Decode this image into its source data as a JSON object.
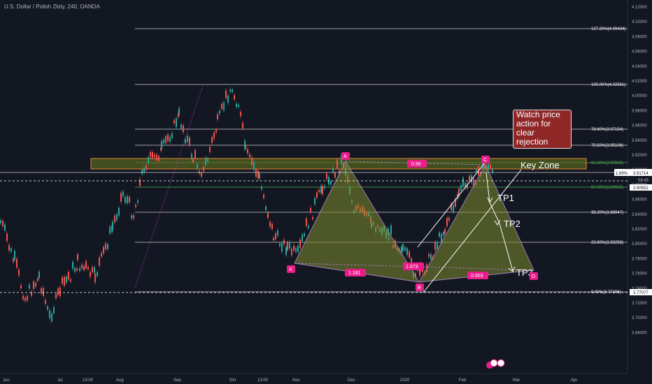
{
  "symbol_title": "U.S. Dollar / Polish Zloty, 240, OANDA",
  "callout_text": "Watch price action for clear rejection",
  "key_zone_label": "Key Zone",
  "targets": [
    "TP1",
    "TP2",
    "TP3"
  ],
  "pattern_points": [
    "X",
    "A",
    "B",
    "C",
    "D"
  ],
  "pattern_ratios": {
    "xb": "1.181",
    "ac": "0.96",
    "b_label": "1.073",
    "cd": "0.903"
  },
  "price_axis": [
    "4.12000",
    "4.10000",
    "4.08000",
    "4.06000",
    "4.04000",
    "4.02000",
    "4.00000",
    "3.98000",
    "3.96000",
    "3.94000",
    "3.92000",
    "3.90000",
    "3.88000",
    "3.86000",
    "3.84000",
    "3.82000",
    "3.80000",
    "3.78000",
    "3.76000",
    "3.74000",
    "3.72000",
    "3.70000",
    "3.68000"
  ],
  "time_axis": [
    "Jun",
    "Jul",
    "13:00",
    "Aug",
    "Sep",
    "Oct",
    "13:00",
    "Nov",
    "Dec",
    "2020",
    "Feb",
    "Mar",
    "Apr"
  ],
  "fib_levels": [
    {
      "label": "127.20%(4.09434)",
      "color": "white"
    },
    {
      "label": "100.00%(4.02561)",
      "color": "white"
    },
    {
      "label": "78.60%(3.97154)",
      "color": "white"
    },
    {
      "label": "70.50%(3.95108)",
      "color": "white"
    },
    {
      "label": "61.80%(3.92910)",
      "color": "green"
    },
    {
      "label": "50.00%(3.89928)",
      "color": "green"
    },
    {
      "label": "38.20%(3.86947)",
      "color": "white"
    },
    {
      "label": "23.60%(3.83258)",
      "color": "white"
    },
    {
      "label": "0.00%(3.77296)",
      "color": "white"
    }
  ],
  "price_tags": {
    "current": "3.91714",
    "current_prefix": "1.69%",
    "countdown": "58:45",
    "level_a": "3.90552",
    "level_b": "3.77077"
  },
  "colors": {
    "background": "#131722",
    "up": "#26a69a",
    "down": "#ef5350",
    "pattern_fill": "#6b7a1e",
    "label_bg": "#e91e8c",
    "callout_bg": "#8f2727"
  }
}
